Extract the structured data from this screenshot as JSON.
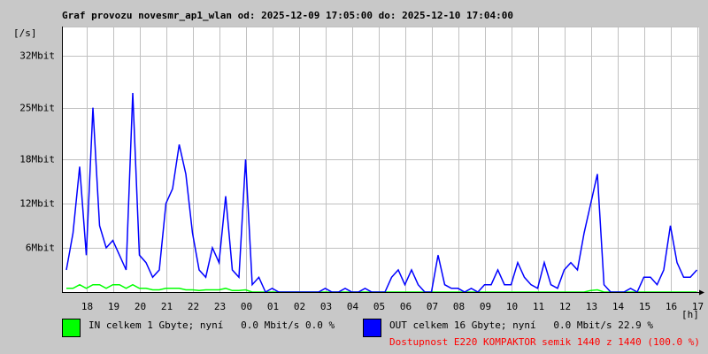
{
  "chart_data": {
    "type": "line",
    "title": "Graf provozu novesmr_ap1_wlan od: 2025-12-09 17:05:00 do: 2025-12-10 17:04:00",
    "y_label": "[/s]",
    "x_label": "[h]",
    "xlim": [
      17.083,
      41.083
    ],
    "ylim": [
      0,
      36
    ],
    "grid": true,
    "yticks": [
      {
        "value": 6,
        "label": "6Mbit"
      },
      {
        "value": 12,
        "label": "12Mbit"
      },
      {
        "value": 18,
        "label": "18Mbit"
      },
      {
        "value": 25,
        "label": "25Mbit"
      },
      {
        "value": 32,
        "label": "32Mbit"
      }
    ],
    "xticks": [
      {
        "value": 18,
        "label": "18"
      },
      {
        "value": 19,
        "label": "19"
      },
      {
        "value": 20,
        "label": "20"
      },
      {
        "value": 21,
        "label": "21"
      },
      {
        "value": 22,
        "label": "22"
      },
      {
        "value": 23,
        "label": "23"
      },
      {
        "value": 24,
        "label": "00"
      },
      {
        "value": 25,
        "label": "01"
      },
      {
        "value": 26,
        "label": "02"
      },
      {
        "value": 27,
        "label": "03"
      },
      {
        "value": 28,
        "label": "04"
      },
      {
        "value": 29,
        "label": "05"
      },
      {
        "value": 30,
        "label": "06"
      },
      {
        "value": 31,
        "label": "07"
      },
      {
        "value": 32,
        "label": "08"
      },
      {
        "value": 33,
        "label": "09"
      },
      {
        "value": 34,
        "label": "10"
      },
      {
        "value": 35,
        "label": "11"
      },
      {
        "value": 36,
        "label": "12"
      },
      {
        "value": 37,
        "label": "13"
      },
      {
        "value": 38,
        "label": "14"
      },
      {
        "value": 39,
        "label": "15"
      },
      {
        "value": 40,
        "label": "16"
      },
      {
        "value": 41,
        "label": "17"
      }
    ],
    "x": [
      17.25,
      17.5,
      17.75,
      18,
      18.25,
      18.5,
      18.75,
      19,
      19.25,
      19.5,
      19.75,
      20,
      20.25,
      20.5,
      20.75,
      21,
      21.25,
      21.5,
      21.75,
      22,
      22.25,
      22.5,
      22.75,
      23,
      23.25,
      23.5,
      23.75,
      24,
      24.25,
      24.5,
      24.75,
      25,
      25.25,
      25.5,
      25.75,
      26,
      26.25,
      26.5,
      26.75,
      27,
      27.25,
      27.5,
      27.75,
      28,
      28.25,
      28.5,
      28.75,
      29,
      29.25,
      29.5,
      29.75,
      30,
      30.25,
      30.5,
      30.75,
      31,
      31.25,
      31.5,
      31.75,
      32,
      32.25,
      32.5,
      32.75,
      33,
      33.25,
      33.5,
      33.75,
      34,
      34.25,
      34.5,
      34.75,
      35,
      35.25,
      35.5,
      35.75,
      36,
      36.25,
      36.5,
      36.75,
      37,
      37.25,
      37.5,
      37.75,
      38,
      38.25,
      38.5,
      38.75,
      39,
      39.25,
      39.5,
      39.75,
      40,
      40.25,
      40.5,
      40.75,
      41
    ],
    "series": [
      {
        "name": "IN celkem 1 Gbyte; nyní   0.0 Mbit/s 0.0 %",
        "color": "#00ff00",
        "values": [
          0.5,
          0.5,
          1,
          0.5,
          1,
          1,
          0.5,
          1,
          1,
          0.5,
          1,
          0.5,
          0.5,
          0.3,
          0.3,
          0.5,
          0.5,
          0.5,
          0.3,
          0.3,
          0.2,
          0.3,
          0.3,
          0.3,
          0.5,
          0.2,
          0.2,
          0.3,
          0,
          0,
          0,
          0,
          0,
          0,
          0,
          0,
          0,
          0,
          0,
          0,
          0,
          0,
          0,
          0,
          0,
          0,
          0,
          0,
          0,
          0,
          0,
          0,
          0,
          0,
          0,
          0,
          0,
          0,
          0,
          0,
          0,
          0,
          0,
          0,
          0,
          0,
          0,
          0,
          0,
          0,
          0,
          0,
          0,
          0,
          0,
          0,
          0,
          0,
          0,
          0.2,
          0.3,
          0,
          0,
          0,
          0,
          0,
          0,
          0,
          0,
          0,
          0,
          0,
          0,
          0,
          0,
          0
        ]
      },
      {
        "name": "OUT celkem 16 Gbyte; nyní   0.0 Mbit/s 22.9 %",
        "color": "#0000ff",
        "values": [
          3,
          8,
          17,
          5,
          25,
          9,
          6,
          7,
          5,
          3,
          27,
          5,
          4,
          2,
          3,
          12,
          14,
          20,
          16,
          8,
          3,
          2,
          6,
          4,
          13,
          3,
          2,
          18,
          1,
          2,
          0,
          0.5,
          0,
          0,
          0,
          0,
          0,
          0,
          0,
          0.5,
          0,
          0,
          0.5,
          0,
          0,
          0.5,
          0,
          0,
          0,
          2,
          3,
          1,
          3,
          1,
          0,
          0,
          5,
          1,
          0.5,
          0.5,
          0,
          0.5,
          0,
          1,
          1,
          3,
          1,
          1,
          4,
          2,
          1,
          0.5,
          4,
          1,
          0.5,
          3,
          4,
          3,
          8,
          12,
          16,
          1,
          0,
          0,
          0,
          0.5,
          0,
          2,
          2,
          1,
          3,
          9,
          4,
          2,
          2,
          3
        ]
      }
    ],
    "availability": "Dostupnost E220 KOMPAKTOR semik 1440 z 1440 (100.0 %)"
  }
}
